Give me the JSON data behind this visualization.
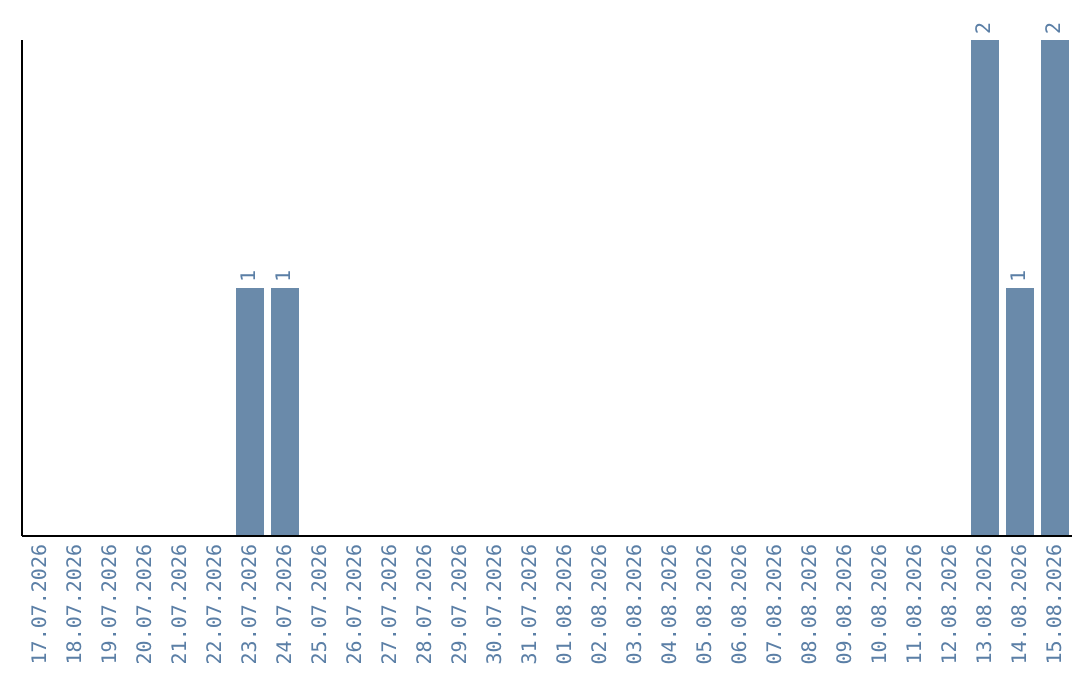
{
  "chart_data": {
    "type": "bar",
    "categories": [
      "17.07.2026",
      "18.07.2026",
      "19.07.2026",
      "20.07.2026",
      "21.07.2026",
      "22.07.2026",
      "23.07.2026",
      "24.07.2026",
      "25.07.2026",
      "26.07.2026",
      "27.07.2026",
      "28.07.2026",
      "29.07.2026",
      "30.07.2026",
      "31.07.2026",
      "01.08.2026",
      "02.08.2026",
      "03.08.2026",
      "04.08.2026",
      "05.08.2026",
      "06.08.2026",
      "07.08.2026",
      "08.08.2026",
      "09.08.2026",
      "10.08.2026",
      "11.08.2026",
      "12.08.2026",
      "13.08.2026",
      "14.08.2026",
      "15.08.2026"
    ],
    "values": [
      0,
      0,
      0,
      0,
      0,
      0,
      1,
      1,
      0,
      0,
      0,
      0,
      0,
      0,
      0,
      0,
      0,
      0,
      0,
      0,
      0,
      0,
      0,
      0,
      0,
      0,
      0,
      2,
      1,
      2
    ],
    "value_labels": [
      null,
      null,
      null,
      null,
      null,
      null,
      "1",
      "1",
      null,
      null,
      null,
      null,
      null,
      null,
      null,
      null,
      null,
      null,
      null,
      null,
      null,
      null,
      null,
      null,
      null,
      null,
      null,
      "2",
      "1",
      "2"
    ],
    "color": "#6a8aaa",
    "ylim": [
      0,
      2
    ],
    "tick_labels": "x",
    "grid": false,
    "legend": false
  }
}
